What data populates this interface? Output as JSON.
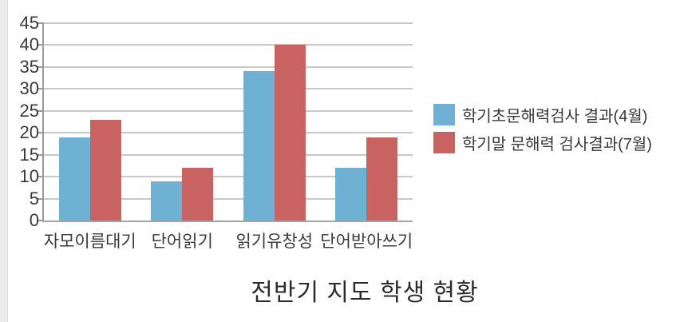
{
  "chart_data": {
    "type": "bar",
    "title": "전반기 지도 학생 현황",
    "categories": [
      "자모이름대기",
      "단어읽기",
      "읽기유창성",
      "단어받아쓰기"
    ],
    "series": [
      {
        "name": "학기초문해력검사 결과(4월)",
        "values": [
          19,
          9,
          34,
          12
        ],
        "color": "#6EB1D2"
      },
      {
        "name": "학기말 문해력 검사결과(7월)",
        "values": [
          23,
          12,
          40,
          19
        ],
        "color": "#C96361"
      }
    ],
    "ylim": [
      0,
      45
    ],
    "yticks": [
      0,
      5,
      10,
      15,
      20,
      25,
      30,
      35,
      40,
      45
    ],
    "grid": true,
    "legend_position": "right",
    "xlabel": "",
    "ylabel": ""
  },
  "palette": {
    "series1": "#6EB1D2",
    "series2": "#C96361",
    "gridline": "#C8C7CB",
    "axis": "#9B9AA0",
    "label_text": "#3A3A3C",
    "title_text": "#2B2B2B",
    "left_strip": "#EBEBED"
  }
}
